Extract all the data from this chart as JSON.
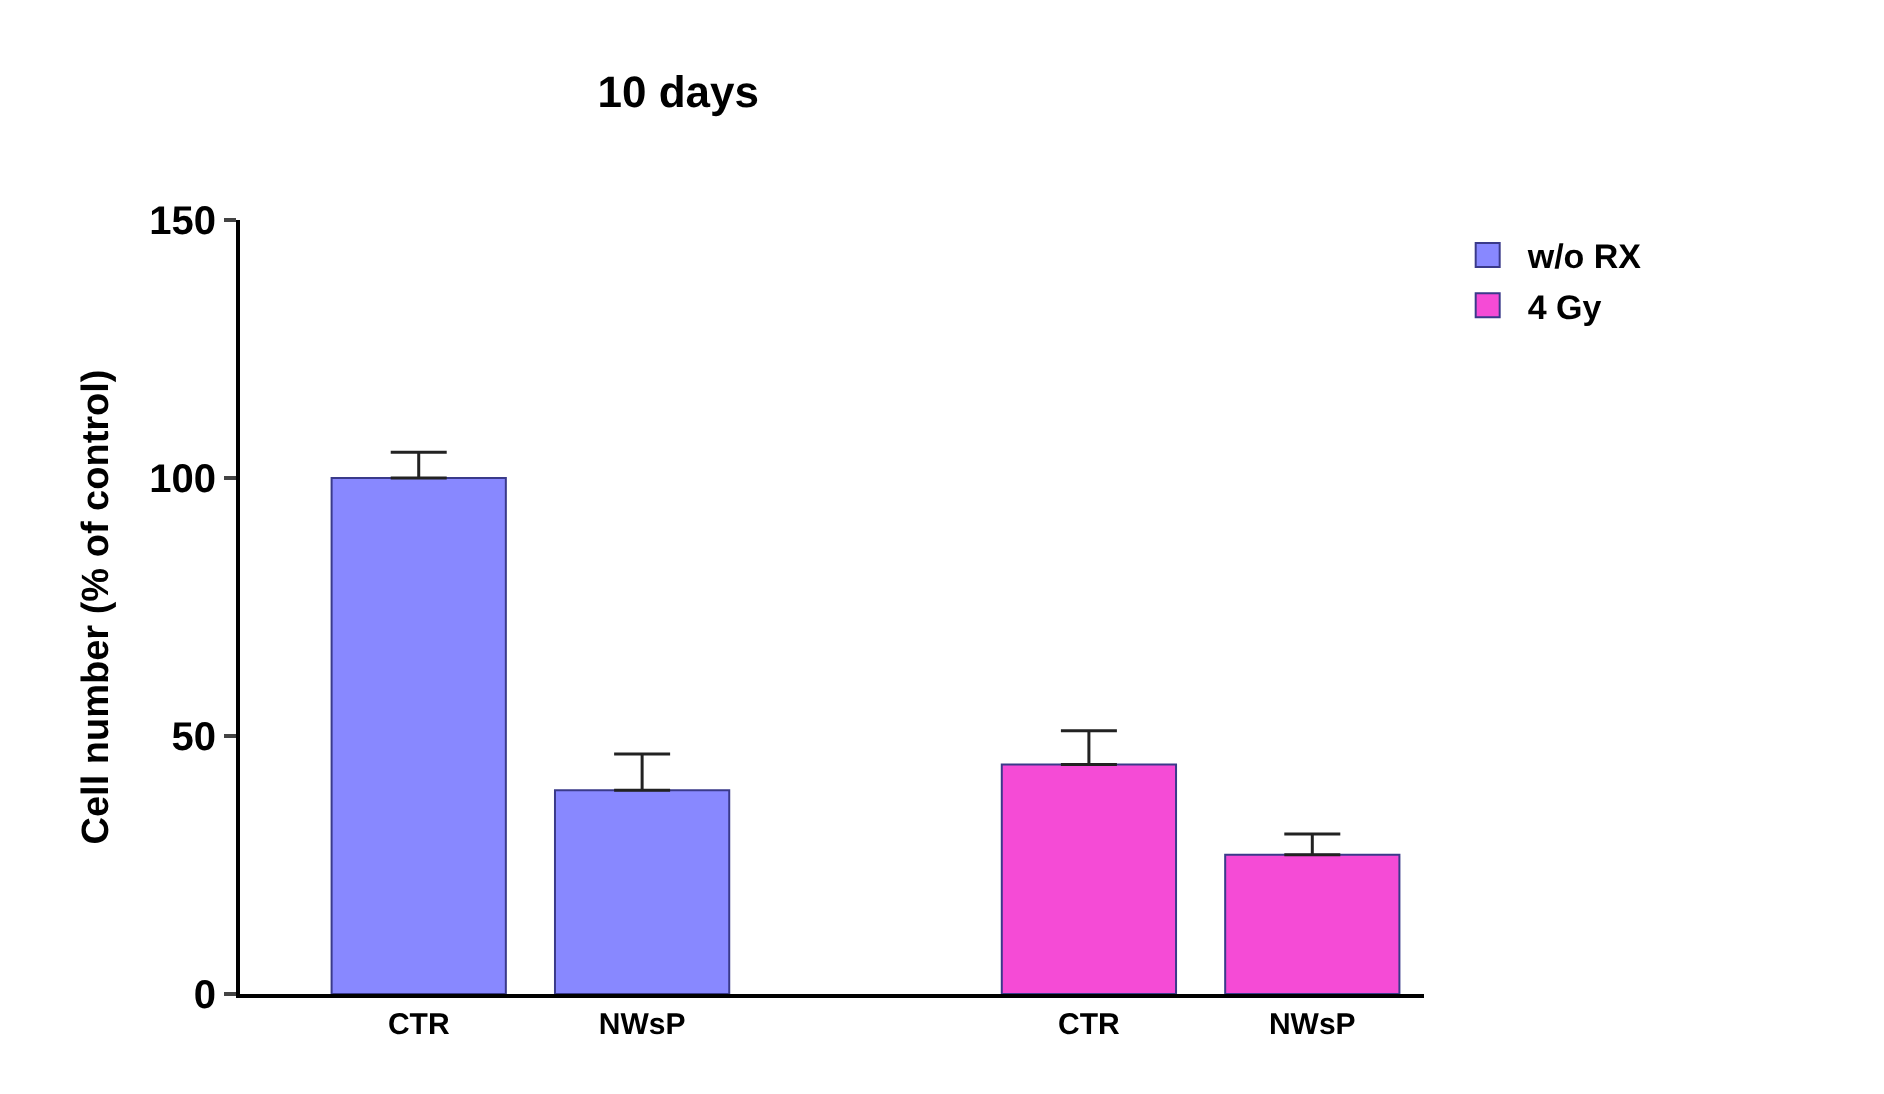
{
  "chart_data": {
    "type": "bar",
    "title": "10 days",
    "ylabel": "Cell number (% of control)",
    "categories": [
      "CTR",
      "NWsP",
      null,
      "CTR",
      "NWsP"
    ],
    "series": [
      {
        "name": "w/o RX",
        "color": "#8888ff",
        "values": [
          100,
          39.5,
          null,
          null,
          null
        ],
        "errors": [
          [
            100,
            105
          ],
          [
            39.5,
            46.5
          ],
          null,
          null,
          null
        ]
      },
      {
        "name": "4 Gy",
        "color": "#f54bd6",
        "values": [
          null,
          null,
          null,
          44.5,
          27
        ],
        "errors": [
          null,
          null,
          null,
          [
            44.5,
            51
          ],
          [
            27,
            31
          ]
        ]
      }
    ],
    "ylim": [
      0,
      150
    ],
    "yticks": [
      0,
      50,
      100,
      150
    ],
    "legend": "top right"
  }
}
